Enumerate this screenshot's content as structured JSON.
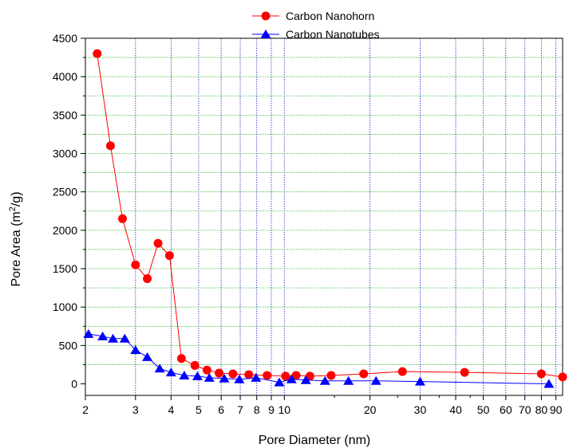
{
  "chart_data": {
    "type": "line",
    "title": "",
    "xlabel": "Pore Diameter (nm)",
    "ylabel_main": "Pore Area (m",
    "ylabel_sup": "2",
    "ylabel_end": "/g)",
    "x_scale": "log",
    "xlim": [
      2,
      95
    ],
    "ylim": [
      -150,
      4500
    ],
    "x_ticks": [
      2,
      3,
      4,
      5,
      6,
      7,
      8,
      9,
      10,
      20,
      30,
      40,
      50,
      60,
      70,
      80,
      90
    ],
    "x_tick_labels": [
      "2",
      "3",
      "4",
      "5",
      "6",
      "7",
      "8",
      "9",
      "10",
      "20",
      "30",
      "40",
      "50",
      "60",
      "70",
      "80",
      "90"
    ],
    "y_ticks": [
      0,
      500,
      1000,
      1500,
      2000,
      2500,
      3000,
      3500,
      4000,
      4500
    ],
    "y_tick_labels": [
      "0",
      "500",
      "1000",
      "1500",
      "2000",
      "2500",
      "3000",
      "3500",
      "4000",
      "4500"
    ],
    "grid": true,
    "legend_position": "top-center",
    "series": [
      {
        "name": "Carbon Nanohorn",
        "color": "#ff0000",
        "marker": "circle",
        "x": [
          2.2,
          2.45,
          2.7,
          3.0,
          3.3,
          3.6,
          3.95,
          4.35,
          4.85,
          5.35,
          5.9,
          6.6,
          7.5,
          8.7,
          10.1,
          11.0,
          12.3,
          14.6,
          19.0,
          26.0,
          43.0,
          80.0,
          95.0
        ],
        "y": [
          4300,
          3100,
          2150,
          1550,
          1370,
          1830,
          1670,
          330,
          240,
          180,
          140,
          130,
          120,
          110,
          100,
          110,
          100,
          110,
          130,
          160,
          150,
          130,
          90
        ]
      },
      {
        "name": "Carbon Nanotubes",
        "color": "#0000ff",
        "marker": "triangle",
        "x": [
          2.05,
          2.3,
          2.5,
          2.75,
          3.0,
          3.3,
          3.65,
          4.0,
          4.45,
          4.95,
          5.45,
          6.15,
          6.95,
          7.95,
          9.6,
          10.6,
          11.9,
          13.9,
          16.8,
          21.0,
          30.0,
          85.0
        ],
        "y": [
          650,
          620,
          590,
          590,
          440,
          350,
          200,
          150,
          110,
          100,
          80,
          70,
          60,
          80,
          20,
          60,
          50,
          40,
          40,
          40,
          30,
          0
        ]
      }
    ]
  }
}
